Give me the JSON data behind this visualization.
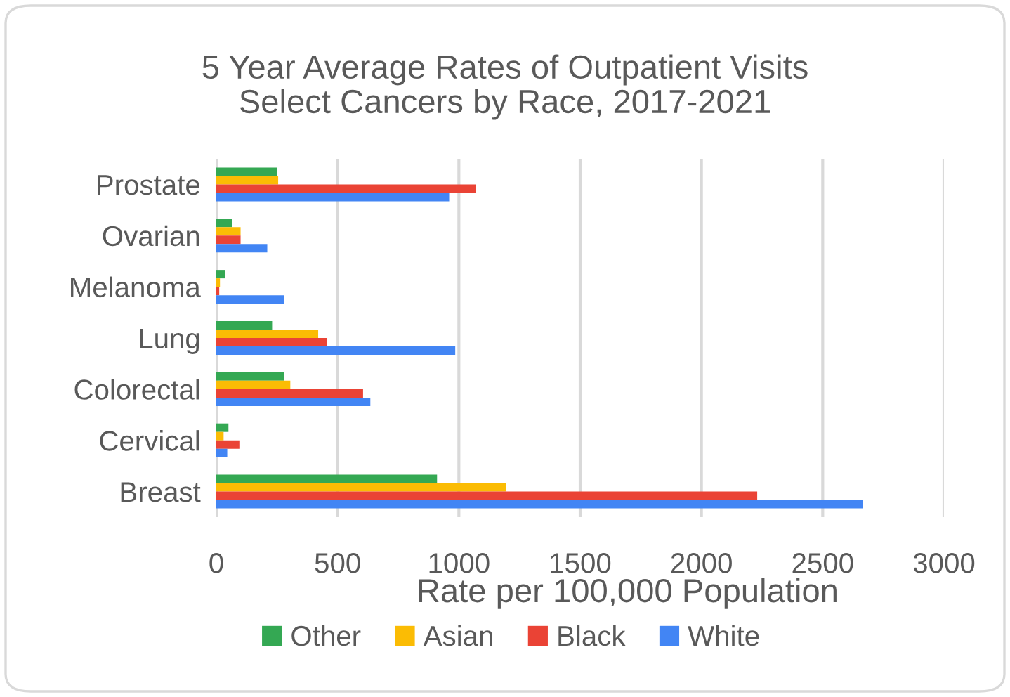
{
  "chart_data": {
    "type": "bar",
    "orientation": "horizontal",
    "title": "5 Year Average Rates of Outpatient Visits\nSelect Cancers by Race, 2017-2021",
    "xlabel": "Rate per 100,000 Population",
    "categories": [
      "Prostate",
      "Ovarian",
      "Melanoma",
      "Lung",
      "Colorectal",
      "Cervical",
      "Breast"
    ],
    "series": [
      {
        "name": "Other",
        "color": "#34a853",
        "values": [
          250,
          65,
          35,
          230,
          280,
          50,
          910
        ]
      },
      {
        "name": "Asian",
        "color": "#fbbc04",
        "values": [
          255,
          100,
          15,
          420,
          305,
          30,
          1195
        ]
      },
      {
        "name": "Black",
        "color": "#ea4335",
        "values": [
          1070,
          100,
          12,
          455,
          605,
          95,
          2230
        ]
      },
      {
        "name": "White",
        "color": "#4285f4",
        "values": [
          960,
          210,
          280,
          985,
          635,
          45,
          2665
        ]
      }
    ],
    "xlim": [
      0,
      3000
    ],
    "xticks": [
      0,
      500,
      1000,
      1500,
      2000,
      2500,
      3000
    ],
    "grid": "x",
    "legend": "bottom"
  }
}
